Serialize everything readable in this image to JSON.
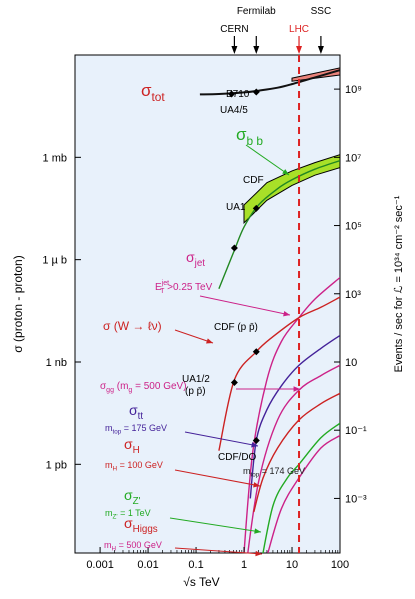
{
  "chart_data": {
    "type": "line",
    "title": "",
    "xlabel": "√s  TeV",
    "x_scale": "log",
    "xlim": [
      0.0003,
      100
    ],
    "x_ticks": [
      "0.001",
      "0.01",
      "0.1",
      "1",
      "10",
      "100"
    ],
    "ylabel_left": "σ  (proton - proton)",
    "y_scale": "log",
    "left_ticks": [
      {
        "label": "1 mb",
        "value_mb": 1
      },
      {
        "label": "1 µ b",
        "value_mb": 0.001
      },
      {
        "label": "1 nb",
        "value_mb": 1e-06
      },
      {
        "label": "1 pb",
        "value_mb": 1e-09
      }
    ],
    "ylabel_right": "Events / sec for ℒ = 10³⁴ cm⁻² sec⁻¹",
    "right_ticks": [
      {
        "label": "10⁹",
        "value": 1000000000.0
      },
      {
        "label": "10⁷",
        "value": 10000000.0
      },
      {
        "label": "10⁵",
        "value": 100000.0
      },
      {
        "label": "10³",
        "value": 1000.0
      },
      {
        "label": "10",
        "value": 10
      },
      {
        "label": "10⁻¹",
        "value": 0.1
      },
      {
        "label": "10⁻³",
        "value": 0.001
      }
    ],
    "machines": [
      {
        "label": "CERN",
        "sqrt_s": 0.63,
        "color": "#000000"
      },
      {
        "label": "Fermilab",
        "sqrt_s": 1.8,
        "color": "#000000"
      },
      {
        "label": "LHC",
        "sqrt_s": 14,
        "color": "#dd2222"
      },
      {
        "label": "SSC",
        "sqrt_s": 40,
        "color": "#000000"
      }
    ],
    "lhc_line": {
      "sqrt_s": 14,
      "color": "#dd2222"
    },
    "series": [
      {
        "name": "σtot",
        "color": "#111111",
        "band": [
          [
            10,
            1700000000.0,
            2100000000.0
          ],
          [
            100,
            2600000000.0,
            4200000000.0
          ]
        ],
        "points": [
          [
            0.12,
            700000000.0
          ],
          [
            0.3,
            720000000.0
          ],
          [
            1,
            800000000.0
          ],
          [
            2,
            900000000.0
          ],
          [
            5,
            1100000000.0
          ],
          [
            10,
            1400000000.0
          ],
          [
            30,
            2200000000.0
          ],
          [
            100,
            3600000000.0
          ]
        ]
      },
      {
        "name": "σbb",
        "color": "#228822",
        "band": [
          [
            1,
            120000.0,
            400000.0
          ],
          [
            3,
            550000.0,
            1800000.0
          ],
          [
            10,
            1500000.0,
            4000000.0
          ],
          [
            30,
            3000000.0,
            7000000.0
          ],
          [
            100,
            5000000.0,
            12000000.0
          ]
        ],
        "points": [
          [
            0.3,
            1400.0
          ],
          [
            0.6,
            16000.0
          ],
          [
            1,
            90000.0
          ],
          [
            2,
            400000.0
          ],
          [
            5,
            1200000.0
          ],
          [
            10,
            2200000.0
          ],
          [
            30,
            4500000.0
          ],
          [
            100,
            8000000.0
          ]
        ]
      },
      {
        "name": "σjet",
        "color": "#cc2288",
        "points": [
          [
            0.95,
            1e-05
          ],
          [
            1.5,
            0.02
          ],
          [
            3,
            3.0
          ],
          [
            6,
            40
          ],
          [
            14,
            200
          ],
          [
            30,
            700
          ],
          [
            100,
            3000
          ]
        ]
      },
      {
        "name": "σ(W → ℓν)",
        "color": "#cc2222",
        "points": [
          [
            0.3,
            0.025
          ],
          [
            0.63,
            3.0
          ],
          [
            1.8,
            20
          ],
          [
            4,
            55
          ],
          [
            14,
            200
          ],
          [
            40,
            400
          ],
          [
            100,
            800
          ]
        ]
      },
      {
        "name": "σtt",
        "color": "#442299",
        "points": [
          [
            1.35,
            0.001
          ],
          [
            1.8,
            0.05
          ],
          [
            3,
            0.4
          ],
          [
            6,
            2.0
          ],
          [
            14,
            8.0
          ],
          [
            40,
            25
          ],
          [
            100,
            60
          ]
        ]
      },
      {
        "name": "σgg (mg = 500 GeV)",
        "color": "#cc2288",
        "points": [
          [
            1.1,
            1e-05
          ],
          [
            2,
            0.003
          ],
          [
            5,
            0.2
          ],
          [
            14,
            1.5
          ],
          [
            40,
            4.0
          ],
          [
            100,
            8.0
          ]
        ]
      },
      {
        "name": "σH (mH = 100 GeV)",
        "color": "#cc2222",
        "points": [
          [
            1.6,
            0.0004
          ],
          [
            2.5,
            0.004
          ],
          [
            5,
            0.03
          ],
          [
            14,
            0.2
          ],
          [
            40,
            0.6
          ],
          [
            100,
            1.2
          ]
        ]
      },
      {
        "name": "σZ' (mZ' = 1 TeV)",
        "color": "#22aa22",
        "points": [
          [
            2.2,
            1e-05
          ],
          [
            4,
            0.0006
          ],
          [
            8,
            0.004
          ],
          [
            14,
            0.01
          ],
          [
            40,
            0.06
          ],
          [
            100,
            0.16
          ]
        ]
      },
      {
        "name": "σHiggs (mH = 500 GeV)",
        "color": "#cc2288",
        "points": [
          [
            3.0,
            2e-05
          ],
          [
            6,
            0.0005
          ],
          [
            14,
            0.004
          ],
          [
            40,
            0.03
          ],
          [
            100,
            0.07
          ]
        ]
      }
    ],
    "markers": [
      {
        "label": "UA4/5",
        "sqrt_s": 0.55,
        "value": 720000000.0
      },
      {
        "label": "E710",
        "sqrt_s": 1.8,
        "value": 820000000.0
      },
      {
        "label": "UA1",
        "sqrt_s": 0.63,
        "value": 22000.0
      },
      {
        "label": "CDF",
        "sqrt_s": 1.8,
        "value": 320000.0
      },
      {
        "label": "CDF (p p̄)",
        "sqrt_s": 1.8,
        "value": 20
      },
      {
        "label": "UA1/2 (p p̄)",
        "sqrt_s": 0.63,
        "value": 2.5
      },
      {
        "label": "CDF/DO",
        "sqrt_s": 1.8,
        "value": 0.05
      }
    ],
    "annotations": [
      {
        "label": "σ",
        "sub": "tot",
        "color": "#cc2222"
      },
      {
        "label": "σ",
        "sub": "b b",
        "color": "#22aa22"
      },
      {
        "label": "σ",
        "sub": "jet",
        "color": "#cc2288"
      },
      {
        "label": "E",
        "sub": "T",
        "sup": "jet",
        "tail": " >0.25 TeV",
        "color": "#cc2288"
      },
      {
        "label": "σ (W → ℓν)",
        "color": "#cc2222"
      },
      {
        "label": "σ",
        "sub": "gg",
        "tail": " (m",
        "tail_sub": "g",
        "tail2": " = 500 GeV)",
        "color": "#cc2288"
      },
      {
        "label": "σ",
        "sub": "tt",
        "color": "#442299"
      },
      {
        "label": "m",
        "sub": "top",
        "tail": " = 175 GeV",
        "color": "#442299"
      },
      {
        "label": "m",
        "sub": "top",
        "tail": " = 174 GeV",
        "color": "#222222"
      },
      {
        "label": "σ",
        "sub": "H",
        "color": "#cc2222"
      },
      {
        "label": "m",
        "sub": "H",
        "tail": " = 100 GeV",
        "color": "#cc2222"
      },
      {
        "label": "σ",
        "sub": "Z'",
        "color": "#22aa22"
      },
      {
        "label": "m",
        "sub": "Z'",
        "tail": " = 1 TeV",
        "color": "#22aa22"
      },
      {
        "label": "σ",
        "sub": "Higgs",
        "color": "#cc2222"
      },
      {
        "label": "m",
        "sub": "H",
        "tail": " = 500 GeV",
        "color": "#cc2288"
      }
    ],
    "colors": {
      "plot_background": "#e8f1fb",
      "band_fill_tot": "#e8827a",
      "band_fill_bb": "#a8e028"
    }
  }
}
